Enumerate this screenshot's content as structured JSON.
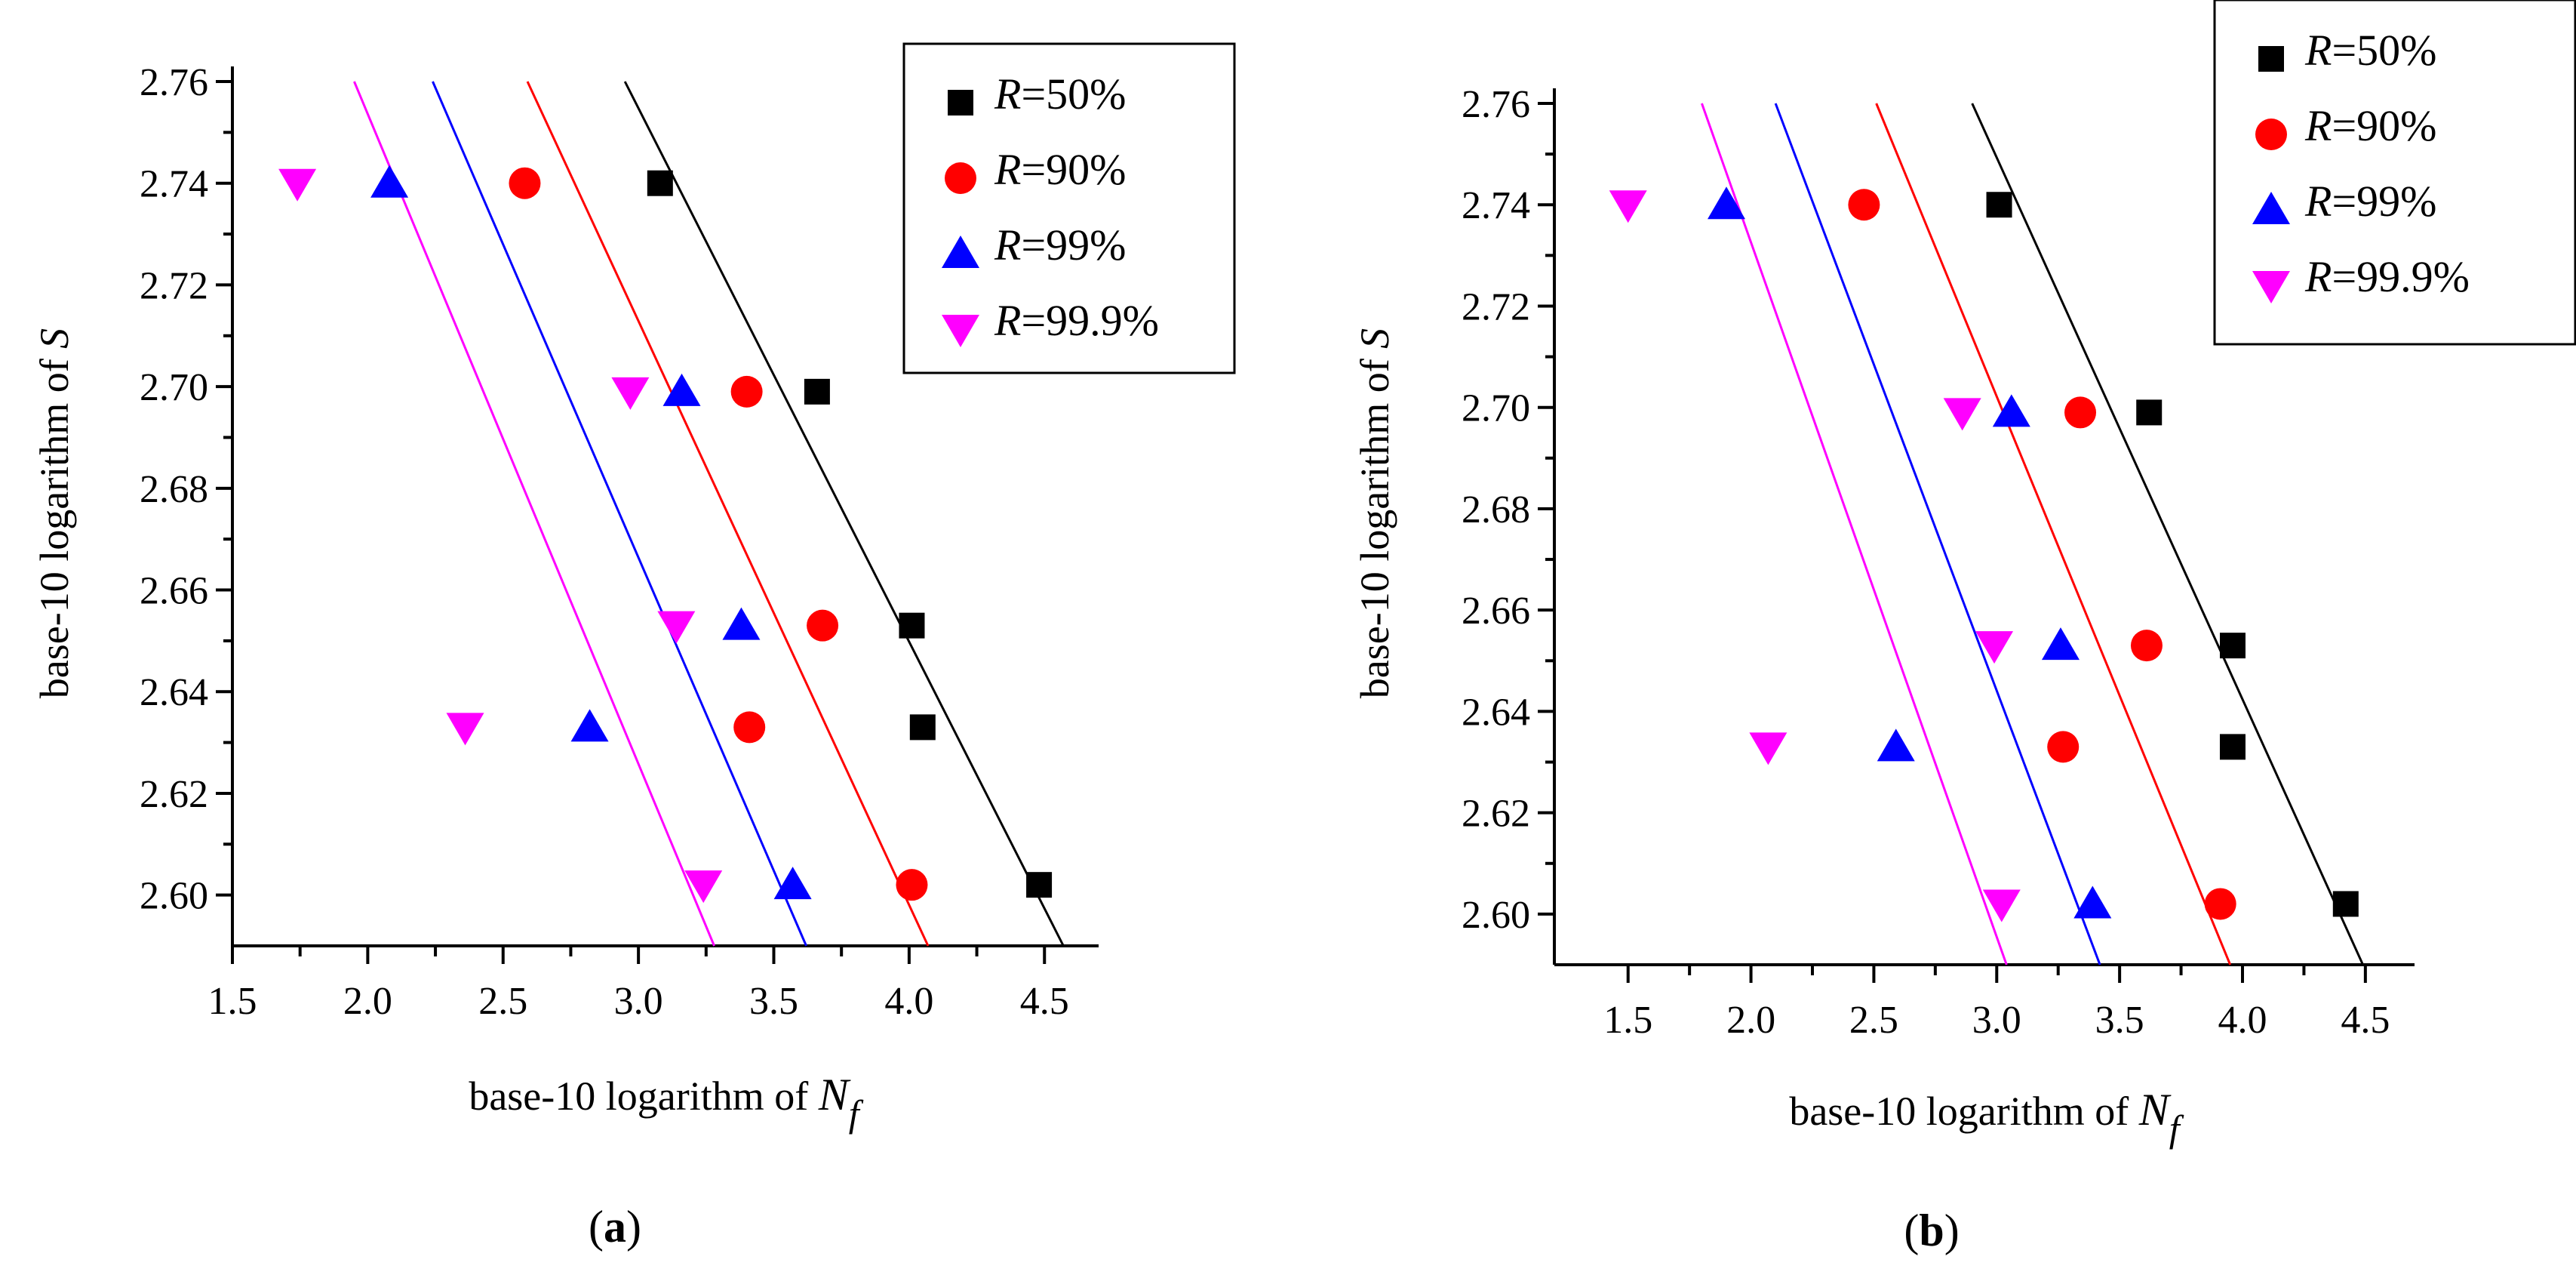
{
  "colors": {
    "r50": "#000000",
    "r90": "#ff0000",
    "r99": "#0000ff",
    "r999": "#ff00ff"
  },
  "legend": [
    {
      "key": "r50",
      "prefix": "R",
      "suffix": "=50%",
      "marker": "square"
    },
    {
      "key": "r90",
      "prefix": "R",
      "suffix": "=90%",
      "marker": "circle"
    },
    {
      "key": "r99",
      "prefix": "R",
      "suffix": "=99%",
      "marker": "triangle-up"
    },
    {
      "key": "r999",
      "prefix": "R",
      "suffix": "=99.9%",
      "marker": "triangle-down"
    }
  ],
  "chart_data": [
    {
      "type": "scatter",
      "panel": "a",
      "caption_open": "(",
      "caption_letter": "a",
      "caption_close": ")",
      "xlabel": "base-10 logarithm of ",
      "xlabel_var": "N",
      "xlabel_sub": "f",
      "ylabel": "base-10 logarithm of ",
      "ylabel_var": "S",
      "xlim": [
        1.5,
        4.7
      ],
      "ylim": [
        2.59,
        2.76
      ],
      "xticks": [
        "1.5",
        "2.0",
        "2.5",
        "3.0",
        "3.5",
        "4.0",
        "4.5"
      ],
      "yticks": [
        "2.60",
        "2.62",
        "2.64",
        "2.66",
        "2.68",
        "2.70",
        "2.72",
        "2.74",
        "2.76"
      ],
      "series": [
        {
          "key": "r50",
          "name": "R=50%",
          "x": [
            3.08,
            3.66,
            4.01,
            4.05,
            4.48
          ],
          "y": [
            2.74,
            2.699,
            2.653,
            2.633,
            2.602
          ],
          "fit": [
            [
              2.95,
              2.76
            ],
            [
              4.57,
              2.59
            ]
          ]
        },
        {
          "key": "r90",
          "name": "R=90%",
          "x": [
            2.58,
            3.4,
            3.68,
            3.41,
            4.01
          ],
          "y": [
            2.74,
            2.699,
            2.653,
            2.633,
            2.602
          ],
          "fit": [
            [
              2.59,
              2.76
            ],
            [
              4.07,
              2.59
            ]
          ]
        },
        {
          "key": "r99",
          "name": "R=99%",
          "x": [
            2.08,
            3.16,
            3.38,
            2.82,
            3.57
          ],
          "y": [
            2.74,
            2.699,
            2.653,
            2.633,
            2.602
          ],
          "fit": [
            [
              2.24,
              2.76
            ],
            [
              3.62,
              2.59
            ]
          ]
        },
        {
          "key": "r999",
          "name": "R=99.9%",
          "x": [
            1.74,
            2.97,
            3.14,
            2.36,
            3.24
          ],
          "y": [
            2.74,
            2.699,
            2.653,
            2.633,
            2.602
          ],
          "fit": [
            [
              1.95,
              2.76
            ],
            [
              3.28,
              2.59
            ]
          ]
        }
      ]
    },
    {
      "type": "scatter",
      "panel": "b",
      "caption_open": "(",
      "caption_letter": "b",
      "caption_close": ")",
      "xlabel": "base-10 logarithm of ",
      "xlabel_var": "N",
      "xlabel_sub": "f",
      "ylabel": "base-10 logarithm of ",
      "ylabel_var": "S",
      "xlim": [
        1.2,
        4.7
      ],
      "ylim": [
        2.59,
        2.76
      ],
      "xticks": [
        "1.5",
        "2.0",
        "2.5",
        "3.0",
        "3.5",
        "4.0",
        "4.5"
      ],
      "yticks": [
        "2.60",
        "2.62",
        "2.64",
        "2.66",
        "2.68",
        "2.70",
        "2.72",
        "2.74",
        "2.76"
      ],
      "series": [
        {
          "key": "r50",
          "name": "R=50%",
          "x": [
            3.01,
            3.62,
            3.96,
            3.96,
            4.42
          ],
          "y": [
            2.74,
            2.699,
            2.653,
            2.633,
            2.602
          ],
          "fit": [
            [
              2.9,
              2.76
            ],
            [
              4.49,
              2.59
            ]
          ]
        },
        {
          "key": "r90",
          "name": "R=90%",
          "x": [
            2.46,
            3.34,
            3.61,
            3.27,
            3.91
          ],
          "y": [
            2.74,
            2.699,
            2.653,
            2.633,
            2.602
          ],
          "fit": [
            [
              2.51,
              2.76
            ],
            [
              3.95,
              2.59
            ]
          ]
        },
        {
          "key": "r99",
          "name": "R=99%",
          "x": [
            1.9,
            3.06,
            3.26,
            2.59,
            3.39
          ],
          "y": [
            2.74,
            2.699,
            2.653,
            2.633,
            2.602
          ],
          "fit": [
            [
              2.1,
              2.76
            ],
            [
              3.42,
              2.59
            ]
          ]
        },
        {
          "key": "r999",
          "name": "R=99.9%",
          "x": [
            1.5,
            2.86,
            2.99,
            2.07,
            3.02
          ],
          "y": [
            2.74,
            2.699,
            2.653,
            2.633,
            2.602
          ],
          "fit": [
            [
              1.8,
              2.76
            ],
            [
              3.04,
              2.59
            ]
          ]
        }
      ]
    }
  ]
}
